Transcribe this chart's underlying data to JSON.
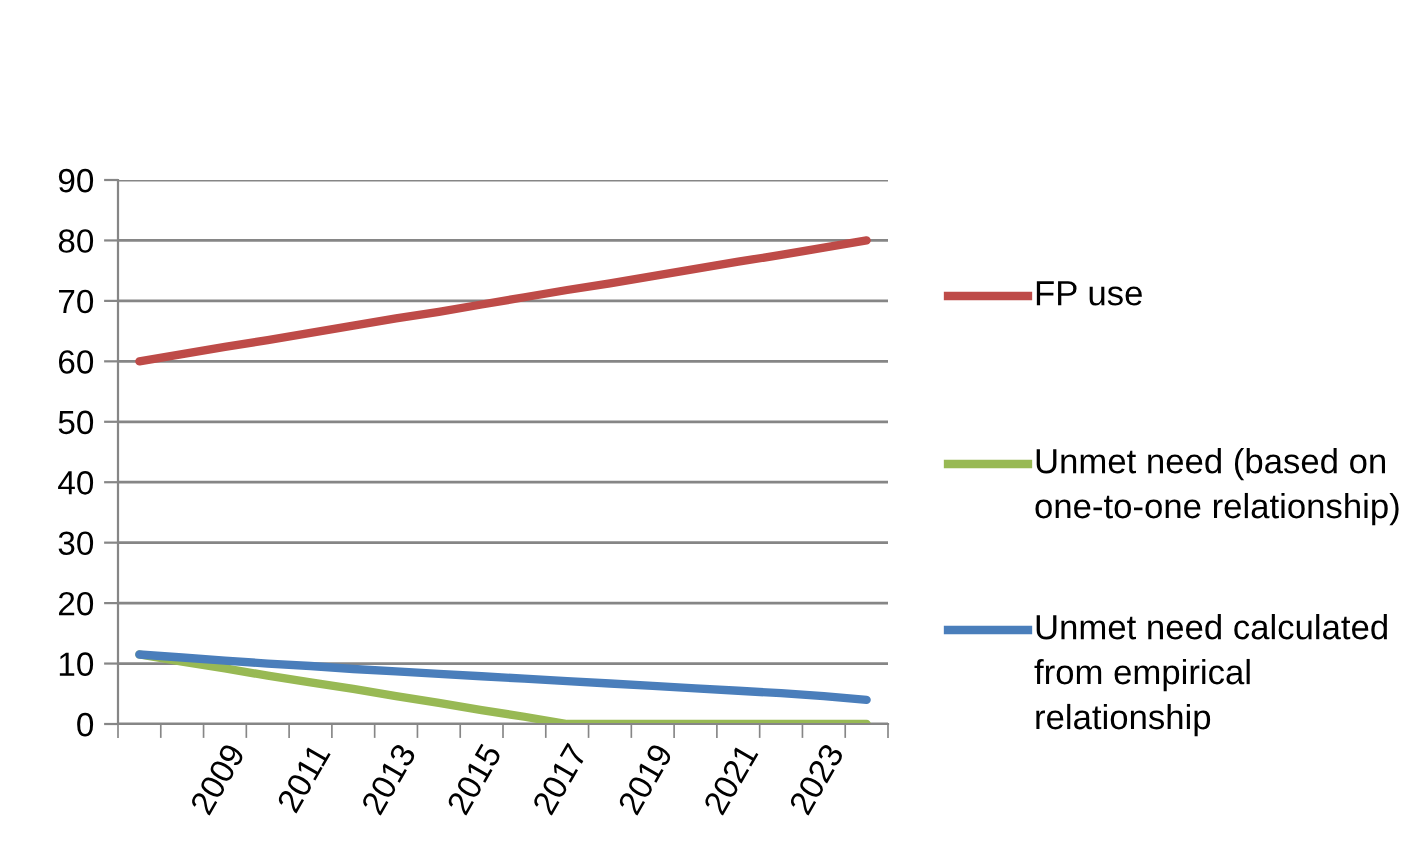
{
  "chart_data": {
    "type": "line",
    "categories": [
      null,
      null,
      "2009",
      null,
      "2011",
      null,
      "2013",
      null,
      "2015",
      null,
      "2017",
      null,
      "2019",
      null,
      "2021",
      null,
      "2023",
      null
    ],
    "series": [
      {
        "name": "FP use",
        "color": "#be4b48",
        "values": [
          60.0,
          61.2,
          62.4,
          63.5,
          64.7,
          65.9,
          67.1,
          68.2,
          69.4,
          70.6,
          71.8,
          72.9,
          74.1,
          75.3,
          76.5,
          77.6,
          78.8,
          80.0
        ]
      },
      {
        "name": "Unmet need (based on one-to-one relationship)",
        "color": "#98b954",
        "values": [
          11.5,
          10.3,
          9.2,
          8.0,
          6.9,
          5.8,
          4.6,
          3.5,
          2.3,
          1.2,
          0,
          0,
          0,
          0,
          0,
          0,
          0,
          0
        ]
      },
      {
        "name": "Unmet need calculated from empirical relationship",
        "color": "#4a7ebb",
        "values": [
          11.5,
          11.0,
          10.5,
          10.0,
          9.6,
          9.1,
          8.7,
          8.3,
          7.9,
          7.5,
          7.1,
          6.7,
          6.3,
          5.9,
          5.5,
          5.1,
          4.6,
          4.0
        ]
      }
    ],
    "ylim": [
      0,
      90
    ],
    "yticks": [
      0,
      10,
      20,
      30,
      40,
      50,
      60,
      70,
      80,
      90
    ],
    "grid": "y",
    "legend": "right",
    "marker": "none",
    "line_style": "solid"
  }
}
